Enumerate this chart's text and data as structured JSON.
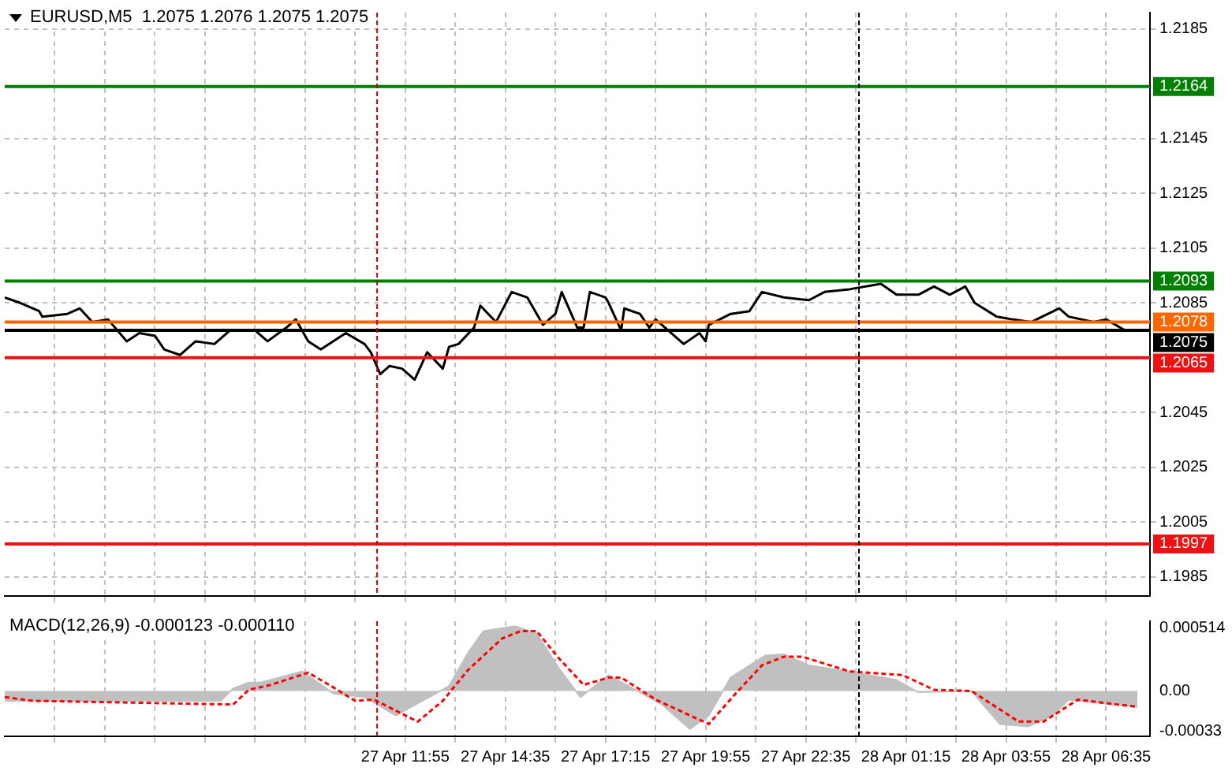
{
  "chart_data": [
    {
      "type": "line",
      "title": "EURUSD,M5  1.2075 1.2076 1.2075 1.2075",
      "x": [
        "--04-27T01:15",
        "--04-27T01:40",
        "--04-27T02:10",
        "--04-27T02:15",
        "--04-27T02:55",
        "--04-27T03:15",
        "--04-27T03:35",
        "--04-27T04:00",
        "--04-27T04:30",
        "--04-27T04:50",
        "--04-27T05:15",
        "--04-27T05:30",
        "--04-27T05:55",
        "--04-27T06:20",
        "--04-27T06:50",
        "--04-27T07:15",
        "--04-27T07:55",
        "--04-27T08:15",
        "--04-27T08:45",
        "--04-27T09:00",
        "--04-27T09:20",
        "--04-27T09:40",
        "--04-27T10:20",
        "--04-27T10:50",
        "--04-27T11:00",
        "--04-27T11:15",
        "--04-27T11:30",
        "--04-27T11:50",
        "--04-27T12:10",
        "--04-27T12:30",
        "--04-27T12:55",
        "--04-27T13:05",
        "--04-27T13:20",
        "--04-27T13:45",
        "--04-27T13:55",
        "--04-27T14:20",
        "--04-27T14:45",
        "--04-27T15:10",
        "--04-27T15:35",
        "--04-27T15:55",
        "--04-27T16:05",
        "--04-27T16:30",
        "--04-27T16:40",
        "--04-27T16:50",
        "--04-27T17:15",
        "--04-27T17:20",
        "--04-27T17:40",
        "--04-27T17:45",
        "--04-27T18:10",
        "--04-27T18:25",
        "--04-27T18:35",
        "--04-27T19:20",
        "--04-27T19:45",
        "--04-27T19:55",
        "--04-27T20:00",
        "--04-27T20:35",
        "--04-27T21:05",
        "--04-27T21:25",
        "--04-27T22:00",
        "--04-27T22:40",
        "--04-27T23:05",
        "--04-27T23:45",
        "--04-28T00:35",
        "--04-28T01:00",
        "--04-28T01:35",
        "--04-28T02:00",
        "--04-28T02:25",
        "--04-28T02:50",
        "--04-28T03:05",
        "--04-28T03:40",
        "--04-28T04:05",
        "--04-28T04:35",
        "--04-28T05:20",
        "--04-28T05:35",
        "--04-28T06:15",
        "--04-28T06:35",
        "--04-28T07:05",
        "--04-28T07:25"
      ],
      "series": [
        {
          "color": "#000000",
          "values": [
            1.2087,
            1.2085,
            1.2082,
            1.208,
            1.2081,
            1.2083,
            1.2078,
            1.2079,
            1.2071,
            1.2074,
            1.2073,
            1.2068,
            1.2066,
            1.2071,
            1.207,
            1.2075,
            1.2075,
            1.2071,
            1.2076,
            1.2079,
            1.2071,
            1.2068,
            1.2074,
            1.207,
            1.2067,
            1.2059,
            1.2062,
            1.2061,
            1.2057,
            1.2067,
            1.2061,
            1.2069,
            1.207,
            1.2076,
            1.2084,
            1.2078,
            1.2089,
            1.2087,
            1.2077,
            1.2081,
            1.2089,
            1.2076,
            1.2076,
            1.2089,
            1.2087,
            1.2085,
            1.2075,
            1.2083,
            1.2081,
            1.2076,
            1.2079,
            1.207,
            1.2074,
            1.2071,
            1.2077,
            1.2081,
            1.2082,
            1.2089,
            1.2087,
            1.2086,
            1.2089,
            1.209,
            1.2092,
            1.2088,
            1.2088,
            1.2091,
            1.2088,
            1.2091,
            1.2085,
            1.208,
            1.2079,
            1.2078,
            1.2083,
            1.208,
            1.2078,
            1.2079,
            1.2075,
            1.2075
          ]
        }
      ],
      "xlim": [
        "--04-27T01:15",
        "--04-28T07:45"
      ],
      "xticks": [
        {
          "value": "--04-27T02:35",
          "label": null
        },
        {
          "value": "--04-27T03:55",
          "label": null
        },
        {
          "value": "--04-27T05:15",
          "label": null
        },
        {
          "value": "--04-27T06:35",
          "label": null
        },
        {
          "value": "--04-27T07:55",
          "label": null
        },
        {
          "value": "--04-27T09:15",
          "label": null
        },
        {
          "value": "--04-27T10:35",
          "label": null
        },
        {
          "value": "--04-27T11:55",
          "label": null
        },
        {
          "value": "--04-27T13:15",
          "label": null
        },
        {
          "value": "--04-27T14:35",
          "label": null
        },
        {
          "value": "--04-27T15:55",
          "label": null
        },
        {
          "value": "--04-27T17:15",
          "label": null
        },
        {
          "value": "--04-27T18:35",
          "label": null
        },
        {
          "value": "--04-27T19:55",
          "label": null
        },
        {
          "value": "--04-27T21:15",
          "label": null
        },
        {
          "value": "--04-27T22:35",
          "label": null
        },
        {
          "value": "--04-27T23:55",
          "label": null
        },
        {
          "value": "--04-28T01:15",
          "label": null
        },
        {
          "value": "--04-28T02:35",
          "label": null
        },
        {
          "value": "--04-28T03:55",
          "label": null
        },
        {
          "value": "--04-28T05:15",
          "label": null
        },
        {
          "value": "--04-28T06:35",
          "label": null
        }
      ],
      "ylim": [
        1.1978,
        1.2191
      ],
      "yticks": [
        1.1985,
        1.2005,
        1.2025,
        1.2045,
        1.2085,
        1.2105,
        1.2125,
        1.2145,
        1.2185
      ],
      "ref_lines": [
        {
          "axis": "y",
          "value": 1.2164,
          "label": "1.2164",
          "color": "#008000"
        },
        {
          "axis": "y",
          "value": 1.2093,
          "label": "1.2093",
          "color": "#008000"
        },
        {
          "axis": "y",
          "value": 1.2078,
          "label": "1.2078",
          "color": "#ff6600"
        },
        {
          "axis": "y",
          "value": 1.2075,
          "label": "1.2075",
          "color": "#000000"
        },
        {
          "axis": "y",
          "value": 1.2065,
          "label": "1.2065",
          "color": "#ee1111"
        },
        {
          "axis": "y",
          "value": 1.1997,
          "label": "1.1997",
          "color": "#ee1111"
        },
        {
          "axis": "x",
          "value": "--04-27T11:10",
          "color": "#cc0000",
          "line_style": "dashed"
        },
        {
          "axis": "x",
          "value": "--04-28T00:00",
          "color": "#000000",
          "line_style": "dashed"
        }
      ],
      "grid": true,
      "marker": "none",
      "tick_labels": "y"
    },
    {
      "type": "area",
      "title": "MACD(12,26,9) -0.000123 -0.000110",
      "series": [
        {
          "color": "#c0c0c0",
          "x": [
            "--04-27T01:15",
            "--04-27T03:00",
            "--04-27T05:00",
            "--04-27T07:00",
            "--04-27T07:20",
            "--04-27T07:45",
            "--04-27T08:05",
            "--04-27T09:10",
            "--04-27T10:00",
            "--04-27T10:50",
            "--04-27T11:40",
            "--04-27T13:05",
            "--04-27T13:35",
            "--04-27T14:00",
            "--04-27T14:50",
            "--04-27T15:25",
            "--04-27T16:00",
            "--04-27T16:35",
            "--04-27T17:00",
            "--04-27T17:20",
            "--04-27T18:10",
            "--04-27T18:45",
            "--04-27T19:30",
            "--04-27T20:00",
            "--04-27T20:35",
            "--04-27T21:30",
            "--04-27T22:00",
            "--04-27T22:40",
            "--04-27T23:55",
            "--04-28T01:00",
            "--04-28T01:35",
            "--04-28T03:00",
            "--04-28T03:45",
            "--04-28T04:30",
            "--04-28T05:10",
            "--04-28T05:35",
            "--04-28T06:45",
            "--04-28T07:25"
          ],
          "values": [
            -8e-05,
            -8e-05,
            -8e-05,
            -8e-05,
            2e-05,
            7e-05,
            7e-05,
            0.00016,
            -2e-05,
            -5e-05,
            -0.0002,
            4e-05,
            0.00031,
            0.00049,
            0.00053,
            0.00047,
            0.00019,
            -5e-05,
            5e-05,
            0.00013,
            -1e-05,
            -0.00011,
            -0.00031,
            -0.0002,
            0.00011,
            0.00029,
            0.0003,
            0.00021,
            0.00015,
            9e-05,
            -1e-05,
            0,
            -0.00027,
            -0.00029,
            -0.0002,
            -7e-05,
            -0.00011,
            -0.00013
          ]
        },
        {
          "type": "line",
          "color": "#ff0000",
          "line_style": "dashed",
          "x": [
            "--04-27T01:15",
            "--04-27T02:00",
            "--04-27T07:20",
            "--04-27T07:45",
            "--04-27T08:20",
            "--04-27T09:20",
            "--04-27T10:00",
            "--04-27T10:35",
            "--04-27T11:05",
            "--04-27T12:15",
            "--04-27T12:55",
            "--04-27T13:35",
            "--04-27T14:30",
            "--04-27T15:00",
            "--04-27T15:25",
            "--04-27T16:00",
            "--04-27T16:40",
            "--04-27T17:20",
            "--04-27T17:40",
            "--04-27T18:35",
            "--04-27T20:00",
            "--04-27T20:45",
            "--04-27T21:25",
            "--04-27T22:00",
            "--04-27T22:30",
            "--04-27T23:45",
            "--04-28T01:10",
            "--04-28T02:00",
            "--04-28T03:00",
            "--04-28T04:15",
            "--04-28T04:55",
            "--04-28T05:50",
            "--04-28T07:25"
          ],
          "values": [
            -5e-05,
            -8e-05,
            -0.00011,
            1e-05,
            5e-05,
            0.00015,
            3e-05,
            -8e-05,
            -7e-05,
            -0.00025,
            -8e-05,
            0.00017,
            0.00043,
            0.00049,
            0.00049,
            0.00027,
            5e-05,
            0.00011,
            0.00011,
            -7e-05,
            -0.00027,
            -1e-05,
            0.00021,
            0.00028,
            0.00028,
            0.00016,
            0.00013,
            1e-05,
            0,
            -0.00025,
            -0.00025,
            -7e-05,
            -0.00013
          ]
        }
      ],
      "xlim": [
        "--04-27T01:15",
        "--04-28T07:45"
      ],
      "xticks": [
        {
          "value": "--04-27T02:35",
          "label": null
        },
        {
          "value": "--04-27T03:55",
          "label": null
        },
        {
          "value": "--04-27T05:15",
          "label": null
        },
        {
          "value": "--04-27T06:35",
          "label": null
        },
        {
          "value": "--04-27T07:55",
          "label": null
        },
        {
          "value": "--04-27T09:15",
          "label": null
        },
        {
          "value": "--04-27T10:35",
          "label": null
        },
        {
          "value": "--04-27T11:55",
          "label": "27 Apr 11:55"
        },
        {
          "value": "--04-27T13:15",
          "label": null
        },
        {
          "value": "--04-27T14:35",
          "label": "27 Apr 14:35"
        },
        {
          "value": "--04-27T15:55",
          "label": null
        },
        {
          "value": "--04-27T17:15",
          "label": "27 Apr 17:15"
        },
        {
          "value": "--04-27T18:35",
          "label": null
        },
        {
          "value": "--04-27T19:55",
          "label": "27 Apr 19:55"
        },
        {
          "value": "--04-27T21:15",
          "label": null
        },
        {
          "value": "--04-27T22:35",
          "label": "27 Apr 22:35"
        },
        {
          "value": "--04-27T23:55",
          "label": null
        },
        {
          "value": "--04-28T01:15",
          "label": "28 Apr 01:15"
        },
        {
          "value": "--04-28T02:35",
          "label": null
        },
        {
          "value": "--04-28T03:55",
          "label": "28 Apr 03:55"
        },
        {
          "value": "--04-28T05:15",
          "label": null
        },
        {
          "value": "--04-28T06:35",
          "label": "28 Apr 06:35"
        }
      ],
      "ylim": [
        -0.00037,
        0.00057
      ],
      "yticks": [
        -0.00033,
        {
          "value": 0,
          "label": "0.00"
        },
        0.000514
      ],
      "ref_lines": [
        {
          "axis": "x",
          "value": "--04-27T11:10",
          "color": "#cc0000",
          "line_style": "dashed"
        },
        {
          "axis": "x",
          "value": "--04-28T00:00",
          "color": "#000000",
          "line_style": "dashed"
        }
      ],
      "grid": "x",
      "marker": "none"
    }
  ]
}
